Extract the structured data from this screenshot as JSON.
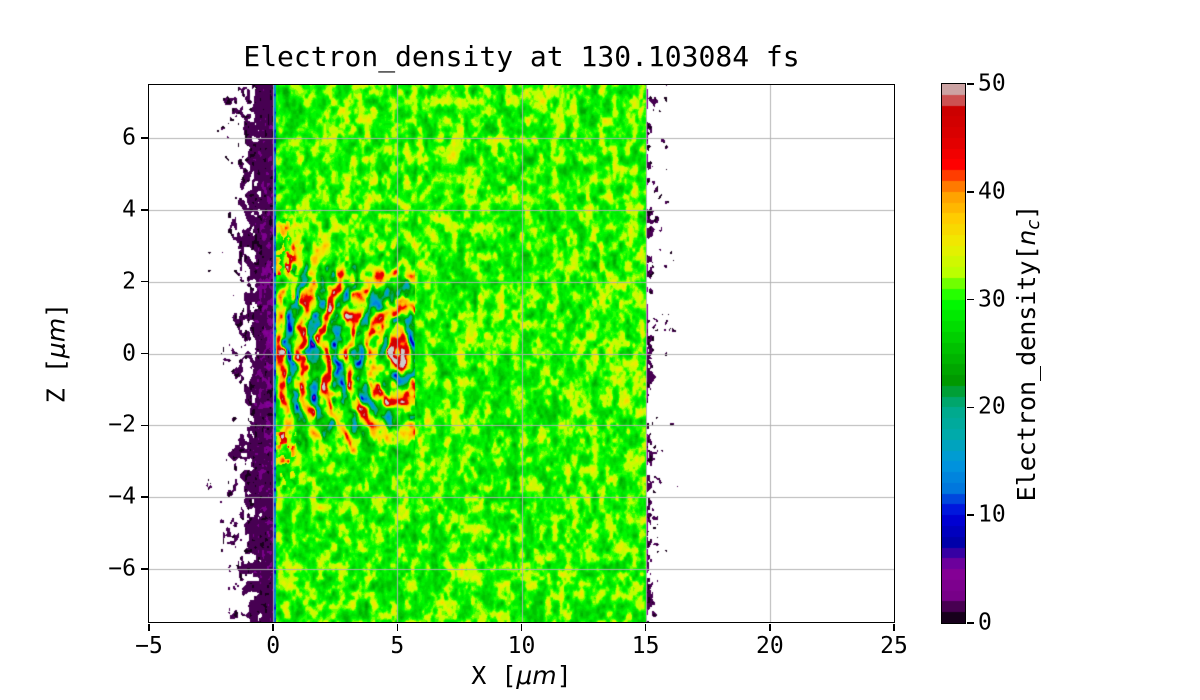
{
  "styles": {
    "background": "#ffffff",
    "text_color": "#000000",
    "spine_color": "#000000",
    "grid_color": "#b0b0b0"
  },
  "labels": {
    "x": {
      "pre": "X [",
      "mu": "μm",
      "post": "]"
    },
    "z": {
      "pre": "Z [",
      "mu": "μm",
      "post": "]"
    },
    "cb": {
      "pre": "Electron_density[",
      "n": "n",
      "sub": "c",
      "post": "]"
    }
  },
  "chart_data": {
    "type": "heatmap",
    "title": "Electron_density at 130.103084 fs",
    "time_fs": 130.103084,
    "xlabel": "X [μm]",
    "ylabel": "Z [μm]",
    "colorbar_label": "Electron_density[n_c]",
    "x_range": [
      -5,
      25
    ],
    "z_range": [
      -7.48,
      7.48
    ],
    "value_range": [
      0,
      50
    ],
    "levels": 50,
    "x_ticks": [
      -5,
      0,
      5,
      10,
      15,
      20,
      25
    ],
    "z_ticks": [
      -6,
      -4,
      -2,
      0,
      2,
      4,
      6
    ],
    "colorbar_ticks": [
      0,
      10,
      20,
      30,
      40,
      50
    ],
    "grid": {
      "show": true,
      "color": "#b0b0b0"
    },
    "colormap": {
      "name": "nipy_spectral",
      "stops": [
        [
          0.0,
          "#000000"
        ],
        [
          0.05,
          "#770088"
        ],
        [
          0.1,
          "#880099"
        ],
        [
          0.15,
          "#0000aa"
        ],
        [
          0.2,
          "#0000dd"
        ],
        [
          0.25,
          "#0077dd"
        ],
        [
          0.3,
          "#0099dd"
        ],
        [
          0.35,
          "#00aaaa"
        ],
        [
          0.4,
          "#00aa88"
        ],
        [
          0.45,
          "#009900"
        ],
        [
          0.5,
          "#00bb00"
        ],
        [
          0.55,
          "#00dd00"
        ],
        [
          0.6,
          "#00ff00"
        ],
        [
          0.65,
          "#bbff00"
        ],
        [
          0.7,
          "#eeee00"
        ],
        [
          0.75,
          "#ffcc00"
        ],
        [
          0.8,
          "#ff9900"
        ],
        [
          0.85,
          "#ff0000"
        ],
        [
          0.9,
          "#dd0000"
        ],
        [
          0.95,
          "#cc0000"
        ],
        [
          1.0,
          "#cccccc"
        ]
      ]
    },
    "features": {
      "plasma_slab": {
        "x_min": 0,
        "x_max": 15,
        "mean_density": 30,
        "speckle_amplitude": 6.5,
        "speckle_scale_um": 0.27
      },
      "front_sheath": {
        "x_width": 0.11,
        "density": 13
      },
      "wake": {
        "center_x": 5.05,
        "z_aspect": 0.88,
        "wavelength_um": 0.92,
        "amplitude": 23,
        "z_extent": 2.6,
        "x_extent": 5.7,
        "core_boost": 7,
        "core_radius": 0.8,
        "peak_density": 52
      },
      "filaments": {
        "x_center": 0.5,
        "x_sigma": 0.45,
        "z_inner": 2.2,
        "z_outer": 4.0,
        "z_extent": 3.6,
        "amplitude": 17
      },
      "blowoff": {
        "x_min": -5,
        "x_max": 0,
        "coverage_cap": 0.88,
        "decay_um": 1.25,
        "x_offset": 0.18,
        "particle_density": 0.7,
        "purple_x_min": -0.85,
        "purple_density": 7,
        "purple_z_sigma": 4.6,
        "blob_scale_um": 0.26
      },
      "forward_scatter": {
        "x_min": 15,
        "x_max": 20,
        "coverage_at_edge": 0.5,
        "decay_um": 1.05,
        "particle_density": 0.7,
        "blob_scale_um": 0.22
      }
    },
    "noise_seed": 7
  }
}
